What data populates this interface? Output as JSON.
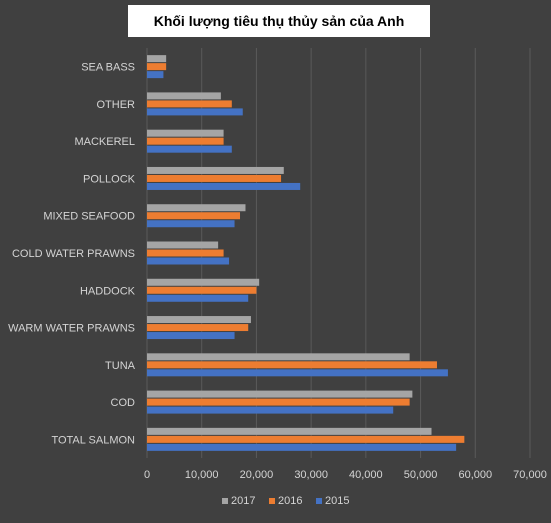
{
  "chart_data": {
    "type": "bar",
    "orientation": "horizontal",
    "title": "Khối lượng tiêu thụ thủy sản của Anh",
    "categories": [
      "SEA BASS",
      "OTHER",
      "MACKEREL",
      "POLLOCK",
      "MIXED SEAFOOD",
      "COLD WATER PRAWNS",
      "HADDOCK",
      "WARM WATER PRAWNS",
      "TUNA",
      "COD",
      "TOTAL SALMON"
    ],
    "series": [
      {
        "name": "2017",
        "color": "#a5a5a5",
        "values": [
          3500,
          13500,
          14000,
          25000,
          18000,
          13000,
          20500,
          19000,
          48000,
          48500,
          52000
        ]
      },
      {
        "name": "2016",
        "color": "#ed7d31",
        "values": [
          3500,
          15500,
          14000,
          24500,
          17000,
          14000,
          20000,
          18500,
          53000,
          48000,
          58000
        ]
      },
      {
        "name": "2015",
        "color": "#4472c4",
        "values": [
          3000,
          17500,
          15500,
          28000,
          16000,
          15000,
          18500,
          16000,
          55000,
          45000,
          56500
        ]
      }
    ],
    "x_ticks": [
      "0",
      "10,000",
      "20,000",
      "30,000",
      "40,000",
      "50,000",
      "60,000",
      "70,000"
    ],
    "xlim": [
      0,
      70000
    ],
    "xlabel": "",
    "ylabel": "",
    "grid": "vertical",
    "legend_position": "bottom",
    "background": "#404040"
  }
}
